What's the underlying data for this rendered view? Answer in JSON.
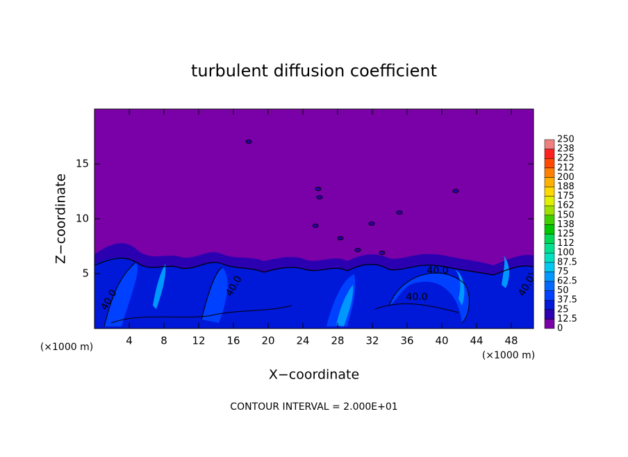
{
  "chart_data": {
    "type": "contour",
    "title": "turbulent diffusion coefficient",
    "x_label": "X−coordinate",
    "y_label": "Z−coordinate",
    "x_unit_left": "(×1000 m)",
    "x_unit_right": "(×1000 m)",
    "xlim": [
      0,
      50.56
    ],
    "xticks": [
      4,
      8,
      12,
      16,
      20,
      24,
      28,
      32,
      36,
      40,
      44,
      48
    ],
    "ylim": [
      0,
      20
    ],
    "yticks": [
      5,
      10,
      15
    ],
    "colorbar": {
      "levels": [
        0,
        12.5,
        25,
        37.5,
        50,
        62.5,
        75,
        87.5,
        100,
        112,
        125,
        138,
        150,
        162,
        175,
        188,
        200,
        212,
        225,
        238,
        250
      ],
      "colors": [
        "#7a00a8",
        "#2a00b0",
        "#0018d8",
        "#0040ff",
        "#0068ff",
        "#0098ff",
        "#00c8f0",
        "#00e0c0",
        "#00e090",
        "#00d858",
        "#00c800",
        "#40d000",
        "#a0e000",
        "#e0f000",
        "#ffd800",
        "#ffb000",
        "#ff8000",
        "#ff4800",
        "#ff2020",
        "#f08080"
      ]
    },
    "contour_labels": [
      "40.0",
      "40.0",
      "40.0",
      "40.0",
      "40.0"
    ],
    "footer": "CONTOUR INTERVAL = 2.000E+01"
  }
}
